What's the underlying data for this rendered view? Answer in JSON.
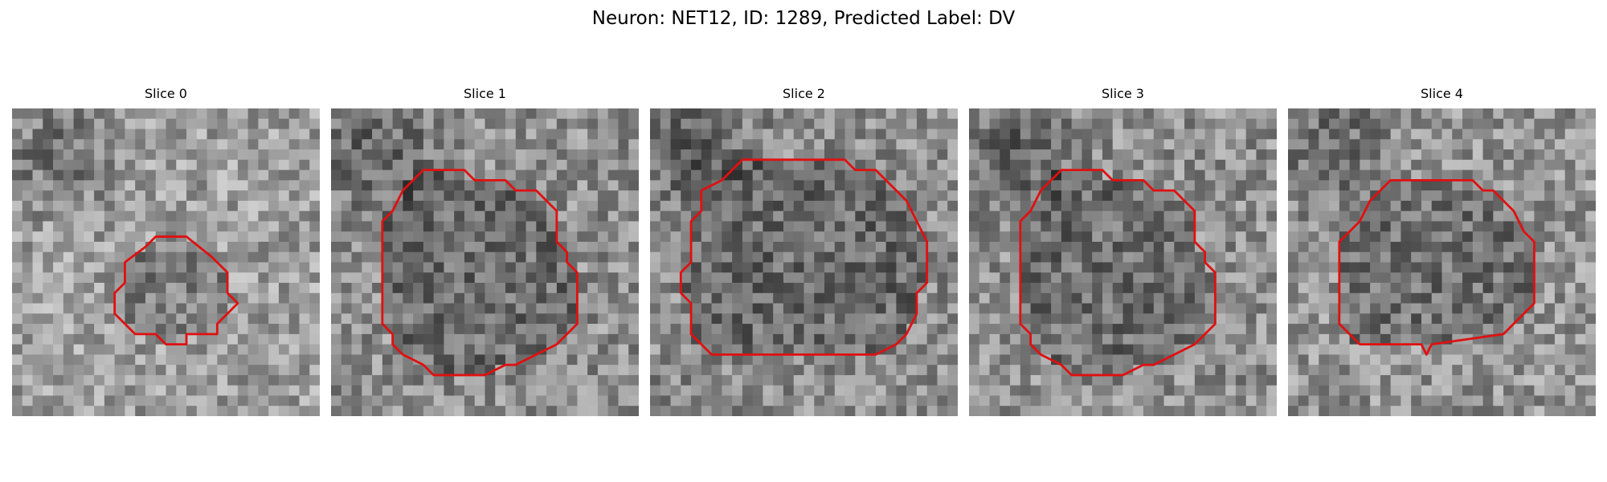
{
  "figure": {
    "title": "Neuron: NET12, ID: 1289, Predicted Label: DV"
  },
  "slices": [
    {
      "title": "Slice 0",
      "seed": 11,
      "brightness": 0.62,
      "roi_kind": "small"
    },
    {
      "title": "Slice 1",
      "seed": 23,
      "brightness": 0.56,
      "roi_kind": "large"
    },
    {
      "title": "Slice 2",
      "seed": 37,
      "brightness": 0.55,
      "roi_kind": "wide"
    },
    {
      "title": "Slice 3",
      "seed": 51,
      "brightness": 0.56,
      "roi_kind": "large"
    },
    {
      "title": "Slice 4",
      "seed": 67,
      "brightness": 0.58,
      "roi_kind": "medium"
    }
  ],
  "colors": {
    "roi_outline": "#e01010",
    "background": "#ffffff"
  }
}
